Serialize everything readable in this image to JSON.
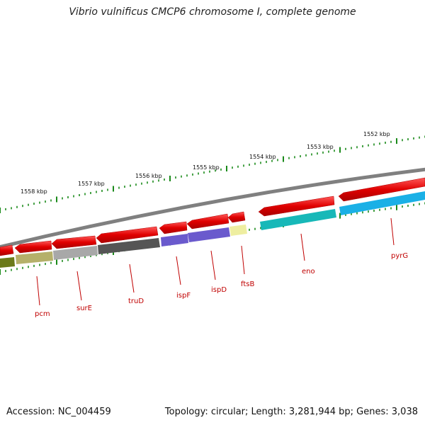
{
  "title": "Vibrio vulnificus CMCP6 chromosome I, complete genome",
  "footer": {
    "accession": "Accession: NC_004459",
    "stats": "Topology: circular; Length: 3,281,944 bp; Genes: 3,038"
  },
  "colors": {
    "backbone": "#808080",
    "cds": "#e00000",
    "tick": "#1a8a1a",
    "label": "#c00000"
  },
  "kbp_labels": [
    {
      "id": "1552",
      "text": "1552 kbp"
    },
    {
      "id": "1553",
      "text": "1553 kbp"
    },
    {
      "id": "1554",
      "text": "1554 kbp"
    },
    {
      "id": "1555",
      "text": "1555 kbp"
    },
    {
      "id": "1556",
      "text": "1556 kbp"
    },
    {
      "id": "1557",
      "text": "1557 kbp"
    },
    {
      "id": "1558",
      "text": "1558 kbp"
    }
  ],
  "genes": [
    {
      "name": "pyrG",
      "color": "#1ab0e6"
    },
    {
      "name": "eno",
      "color": "#17b8b8"
    },
    {
      "name": "ftsB",
      "color": "#eeeea0"
    },
    {
      "name": "ispD",
      "color": "#6a5acd"
    },
    {
      "name": "ispF",
      "color": "#6a5acd"
    },
    {
      "name": "truD",
      "color": "#555555"
    },
    {
      "name": "surE",
      "color": "#a8a8a8"
    },
    {
      "name": "pcm",
      "color": "#b5b06a"
    }
  ]
}
